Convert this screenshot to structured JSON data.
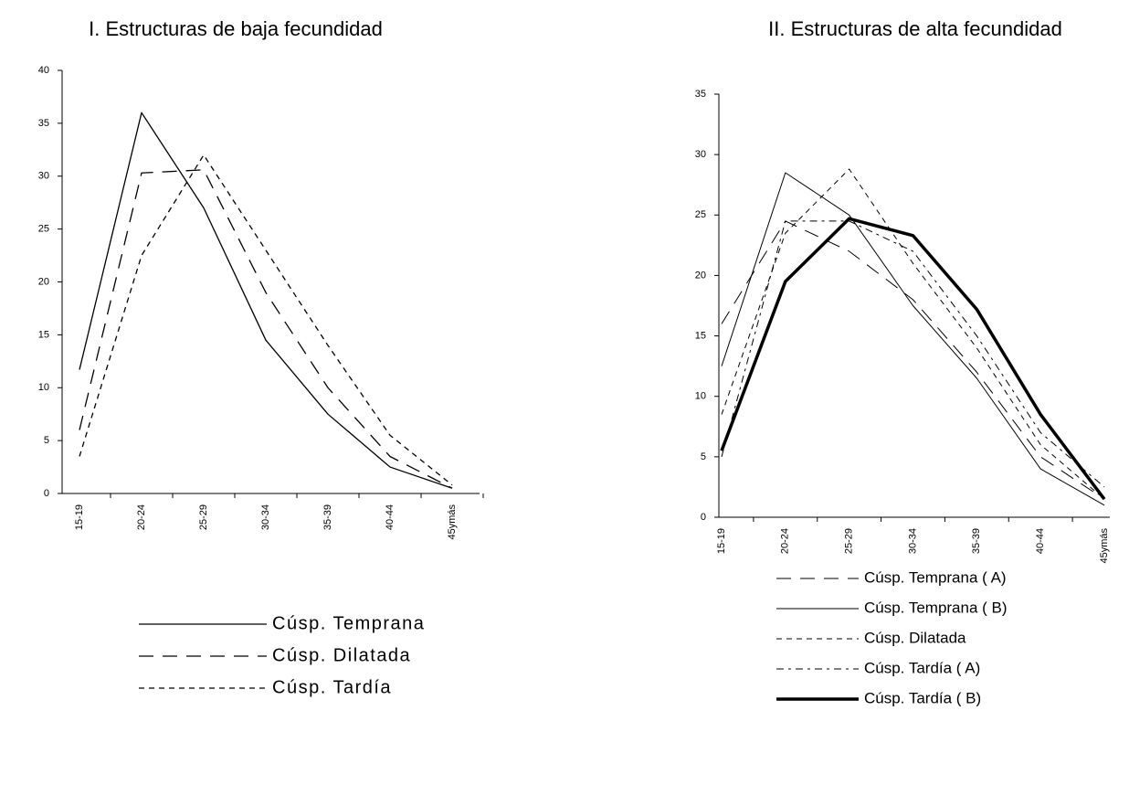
{
  "chart_data": [
    {
      "type": "line",
      "title": "I. Estructuras de baja fecundidad",
      "categories": [
        "15-19",
        "20-24",
        "25-29",
        "30-34",
        "35-39",
        "40-44",
        "45ymás"
      ],
      "ylim": [
        0,
        40
      ],
      "yticks": [
        0,
        5,
        10,
        15,
        20,
        25,
        30,
        35,
        40
      ],
      "grid": false,
      "series": [
        {
          "name": "Cúsp. Temprana",
          "color": "#000000",
          "line_style": "solid",
          "line_width": 1.3,
          "values": [
            11.7,
            36,
            27,
            14.5,
            7.5,
            2.5,
            0.5
          ]
        },
        {
          "name": "Cúsp. Dilatada",
          "color": "#000000",
          "line_style": "long-dash",
          "line_width": 1.3,
          "values": [
            6,
            30.3,
            30.6,
            19,
            10,
            3.5,
            0.5
          ]
        },
        {
          "name": "Cúsp. Tardía",
          "color": "#000000",
          "line_style": "dashed",
          "line_width": 1.3,
          "values": [
            3.5,
            22.5,
            32,
            23,
            14,
            5.5,
            0.8
          ]
        }
      ]
    },
    {
      "type": "line",
      "title": "II. Estructuras de alta fecundidad",
      "categories": [
        "15-19",
        "20-24",
        "25-29",
        "30-34",
        "35-39",
        "40-44",
        "45ymás"
      ],
      "ylim": [
        0,
        35
      ],
      "yticks": [
        0,
        5,
        10,
        15,
        20,
        25,
        30,
        35
      ],
      "grid": false,
      "series": [
        {
          "name": "Cúsp. Temprana ( A)",
          "color": "#000000",
          "line_style": "long-dash",
          "line_width": 1,
          "values": [
            16,
            24.5,
            22,
            18,
            12,
            5,
            1.5
          ]
        },
        {
          "name": "Cúsp. Temprana ( B)",
          "color": "#000000",
          "line_style": "solid",
          "line_width": 1,
          "values": [
            12.5,
            28.5,
            25,
            17.5,
            11.5,
            4,
            1
          ]
        },
        {
          "name": "Cúsp. Dilatada",
          "color": "#000000",
          "line_style": "dashed",
          "line_width": 1,
          "values": [
            8.5,
            23.5,
            28.8,
            21,
            14,
            6,
            1.5
          ]
        },
        {
          "name": "Cúsp. Tardía ( A)",
          "color": "#000000",
          "line_style": "dash-dot",
          "line_width": 1,
          "values": [
            5,
            24.5,
            24.5,
            22,
            15,
            7,
            2.5
          ]
        },
        {
          "name": "Cúsp. Tardía ( B)",
          "color": "#000000",
          "line_style": "solid",
          "line_width": 3.5,
          "values": [
            5.5,
            19.5,
            24.7,
            23.3,
            17.2,
            8.5,
            1.5
          ]
        }
      ]
    }
  ]
}
